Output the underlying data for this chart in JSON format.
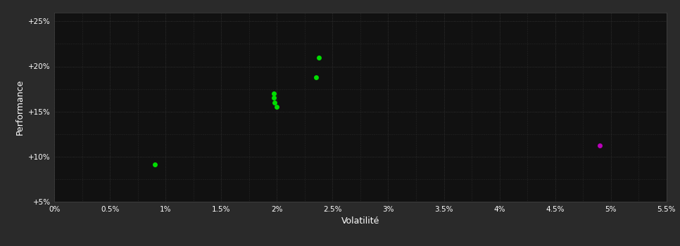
{
  "background_color": "#2a2a2a",
  "plot_bg_color": "#111111",
  "grid_color": "#3a3a3a",
  "text_color": "#ffffff",
  "xlabel": "Volatilité",
  "ylabel": "Performance",
  "xlim": [
    0.0,
    0.055
  ],
  "ylim": [
    0.05,
    0.26
  ],
  "xticks": [
    0.0,
    0.005,
    0.01,
    0.015,
    0.02,
    0.025,
    0.03,
    0.035,
    0.04,
    0.045,
    0.05,
    0.055
  ],
  "xtick_labels": [
    "0%",
    "0.5%",
    "1%",
    "1.5%",
    "2%",
    "2.5%",
    "3%",
    "3.5%",
    "4%",
    "4.5%",
    "5%",
    "5.5%"
  ],
  "yticks": [
    0.05,
    0.1,
    0.15,
    0.2,
    0.25
  ],
  "ytick_labels": [
    "+5%",
    "+10%",
    "+15%",
    "+20%",
    "+25%"
  ],
  "green_points": [
    [
      0.009,
      0.091
    ],
    [
      0.0197,
      0.17
    ],
    [
      0.0197,
      0.165
    ],
    [
      0.0198,
      0.16
    ],
    [
      0.02,
      0.155
    ],
    [
      0.0235,
      0.188
    ],
    [
      0.0238,
      0.21
    ]
  ],
  "purple_points": [
    [
      0.049,
      0.112
    ]
  ],
  "green_color": "#00dd00",
  "purple_color": "#bb00bb",
  "marker_size": 5,
  "figsize": [
    9.66,
    3.5
  ],
  "dpi": 100
}
